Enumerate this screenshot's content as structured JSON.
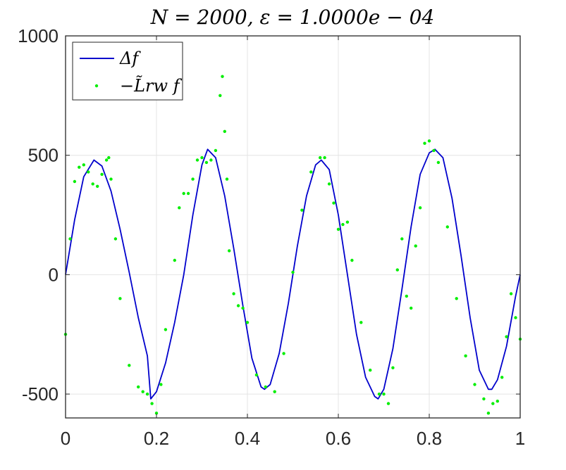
{
  "chart_data": {
    "type": "line",
    "title": "N = 2000, ε = 1.0000e − 04",
    "xlabel": "",
    "ylabel": "",
    "xlim": [
      0,
      1
    ],
    "ylim": [
      -600,
      1000
    ],
    "xticks": [
      0,
      0.2,
      0.4,
      0.6,
      0.8,
      1
    ],
    "xtick_labels": [
      "0",
      "0.2",
      "0.4",
      "0.6",
      "0.8",
      "1"
    ],
    "yticks": [
      -500,
      0,
      500,
      1000
    ],
    "ytick_labels": [
      "-500",
      "0",
      "500",
      "1000"
    ],
    "grid": true,
    "legend_position": "top-left",
    "series": [
      {
        "name": "Δf",
        "style": "line",
        "color": "#0000cc",
        "x": [
          0,
          0.02,
          0.04,
          0.0625,
          0.08,
          0.1,
          0.12,
          0.14,
          0.16,
          0.18,
          0.1875,
          0.2,
          0.22,
          0.24,
          0.26,
          0.28,
          0.3,
          0.3125,
          0.33,
          0.35,
          0.37,
          0.39,
          0.41,
          0.43,
          0.4375,
          0.45,
          0.47,
          0.49,
          0.51,
          0.53,
          0.55,
          0.5625,
          0.58,
          0.6,
          0.62,
          0.64,
          0.66,
          0.68,
          0.6875,
          0.7,
          0.72,
          0.74,
          0.76,
          0.78,
          0.8,
          0.8125,
          0.83,
          0.85,
          0.87,
          0.89,
          0.91,
          0.93,
          0.9375,
          0.95,
          0.97,
          0.99,
          1
        ],
        "y": [
          0,
          230,
          410,
          480,
          455,
          350,
          190,
          10,
          -180,
          -340,
          -520,
          -490,
          -370,
          -200,
          0,
          250,
          460,
          525,
          490,
          330,
          110,
          -130,
          -350,
          -470,
          -480,
          -460,
          -330,
          -120,
          120,
          330,
          460,
          480,
          440,
          250,
          0,
          -250,
          -430,
          -510,
          -520,
          -480,
          -310,
          -60,
          200,
          420,
          510,
          525,
          490,
          320,
          80,
          -180,
          -400,
          -480,
          -480,
          -440,
          -300,
          -90,
          0
        ]
      },
      {
        "name": "−L̃rw f",
        "style": "markers",
        "color": "#00ee00",
        "x": [
          0,
          0.01,
          0.02,
          0.03,
          0.04,
          0.05,
          0.06,
          0.07,
          0.08,
          0.09,
          0.095,
          0.1,
          0.11,
          0.12,
          0.14,
          0.16,
          0.17,
          0.18,
          0.19,
          0.2,
          0.21,
          0.22,
          0.24,
          0.25,
          0.26,
          0.27,
          0.28,
          0.29,
          0.3,
          0.31,
          0.32,
          0.33,
          0.34,
          0.345,
          0.35,
          0.355,
          0.36,
          0.37,
          0.38,
          0.39,
          0.4,
          0.42,
          0.44,
          0.46,
          0.48,
          0.5,
          0.52,
          0.54,
          0.56,
          0.57,
          0.58,
          0.59,
          0.6,
          0.61,
          0.62,
          0.63,
          0.65,
          0.67,
          0.69,
          0.7,
          0.71,
          0.72,
          0.73,
          0.74,
          0.75,
          0.76,
          0.77,
          0.78,
          0.79,
          0.8,
          0.81,
          0.82,
          0.84,
          0.86,
          0.88,
          0.9,
          0.92,
          0.93,
          0.94,
          0.95,
          0.96,
          0.97,
          0.98,
          0.99,
          1
        ],
        "y": [
          -250,
          150,
          390,
          450,
          460,
          430,
          380,
          370,
          420,
          480,
          490,
          400,
          150,
          -100,
          -380,
          -470,
          -490,
          -500,
          -540,
          -580,
          -460,
          -230,
          60,
          280,
          340,
          340,
          400,
          480,
          490,
          470,
          480,
          520,
          750,
          830,
          600,
          400,
          100,
          -80,
          -130,
          -140,
          -200,
          -420,
          -470,
          -490,
          -330,
          10,
          270,
          430,
          490,
          490,
          380,
          300,
          190,
          210,
          220,
          60,
          -200,
          -400,
          -500,
          -500,
          -540,
          -390,
          20,
          150,
          -90,
          -140,
          120,
          280,
          550,
          560,
          520,
          470,
          200,
          -100,
          -340,
          -460,
          -520,
          -580,
          -540,
          -530,
          -430,
          -260,
          -80,
          -180,
          -270
        ]
      }
    ]
  }
}
